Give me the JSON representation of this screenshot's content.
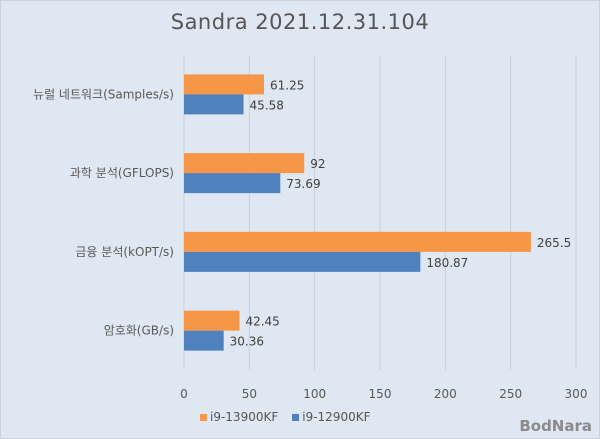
{
  "chart_data": {
    "type": "bar",
    "orientation": "horizontal",
    "title": "Sandra 2021.12.31.104",
    "categories": [
      "뉴럴 네트워크(Samples/s)",
      "과학 분석(GFLOPS)",
      "금융 분석(kOPT/s)",
      "암호화(GB/s)"
    ],
    "series": [
      {
        "name": "i9-13900KF",
        "color": "#f79646",
        "values": [
          61.25,
          92,
          265.5,
          42.45
        ],
        "labels": [
          "61.25",
          "92",
          "265.5",
          "42.45"
        ]
      },
      {
        "name": "i9-12900KF",
        "color": "#4f81bd",
        "values": [
          45.58,
          73.69,
          180.87,
          30.36
        ],
        "labels": [
          "45.58",
          "73.69",
          "180.87",
          "30.36"
        ]
      }
    ],
    "xlim": [
      0,
      300
    ],
    "xticks": [
      "0",
      "50",
      "100",
      "150",
      "200",
      "250",
      "300"
    ],
    "grid": true,
    "legend": "bottom"
  },
  "watermark": "BodNara"
}
